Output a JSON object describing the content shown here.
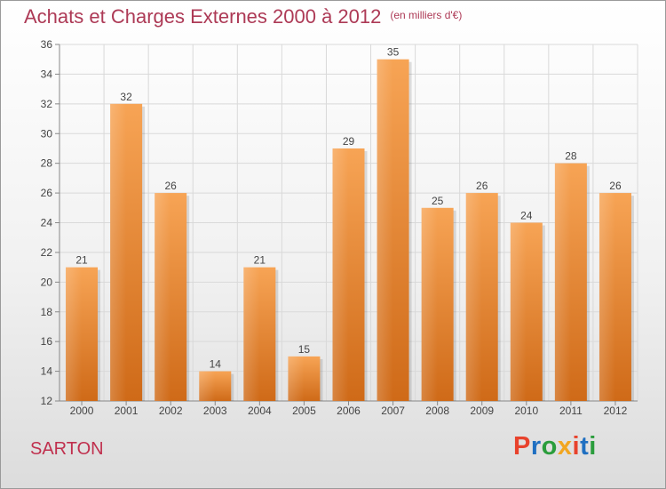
{
  "header": {
    "title": "Achats et Charges Externes 2000 à 2012",
    "unit": "(en milliers d'€)"
  },
  "commune": "SARTON",
  "logo": {
    "text": "Proxiti",
    "colors": [
      "#e8422c",
      "#1f6fc1",
      "#2a9d3c",
      "#f2a620",
      "#e8422c",
      "#1f6fc1",
      "#2a9d3c"
    ]
  },
  "chart_data": {
    "type": "bar",
    "categories": [
      "2000",
      "2001",
      "2002",
      "2003",
      "2004",
      "2005",
      "2006",
      "2007",
      "2008",
      "2009",
      "2010",
      "2011",
      "2012"
    ],
    "values": [
      21,
      32,
      26,
      14,
      21,
      15,
      29,
      35,
      25,
      26,
      24,
      28,
      26
    ],
    "ylim": [
      12,
      36
    ],
    "yticks": [
      12,
      14,
      16,
      18,
      20,
      22,
      24,
      26,
      28,
      30,
      32,
      34,
      36
    ],
    "grid": true,
    "bar_color": "#ee8a3a"
  }
}
